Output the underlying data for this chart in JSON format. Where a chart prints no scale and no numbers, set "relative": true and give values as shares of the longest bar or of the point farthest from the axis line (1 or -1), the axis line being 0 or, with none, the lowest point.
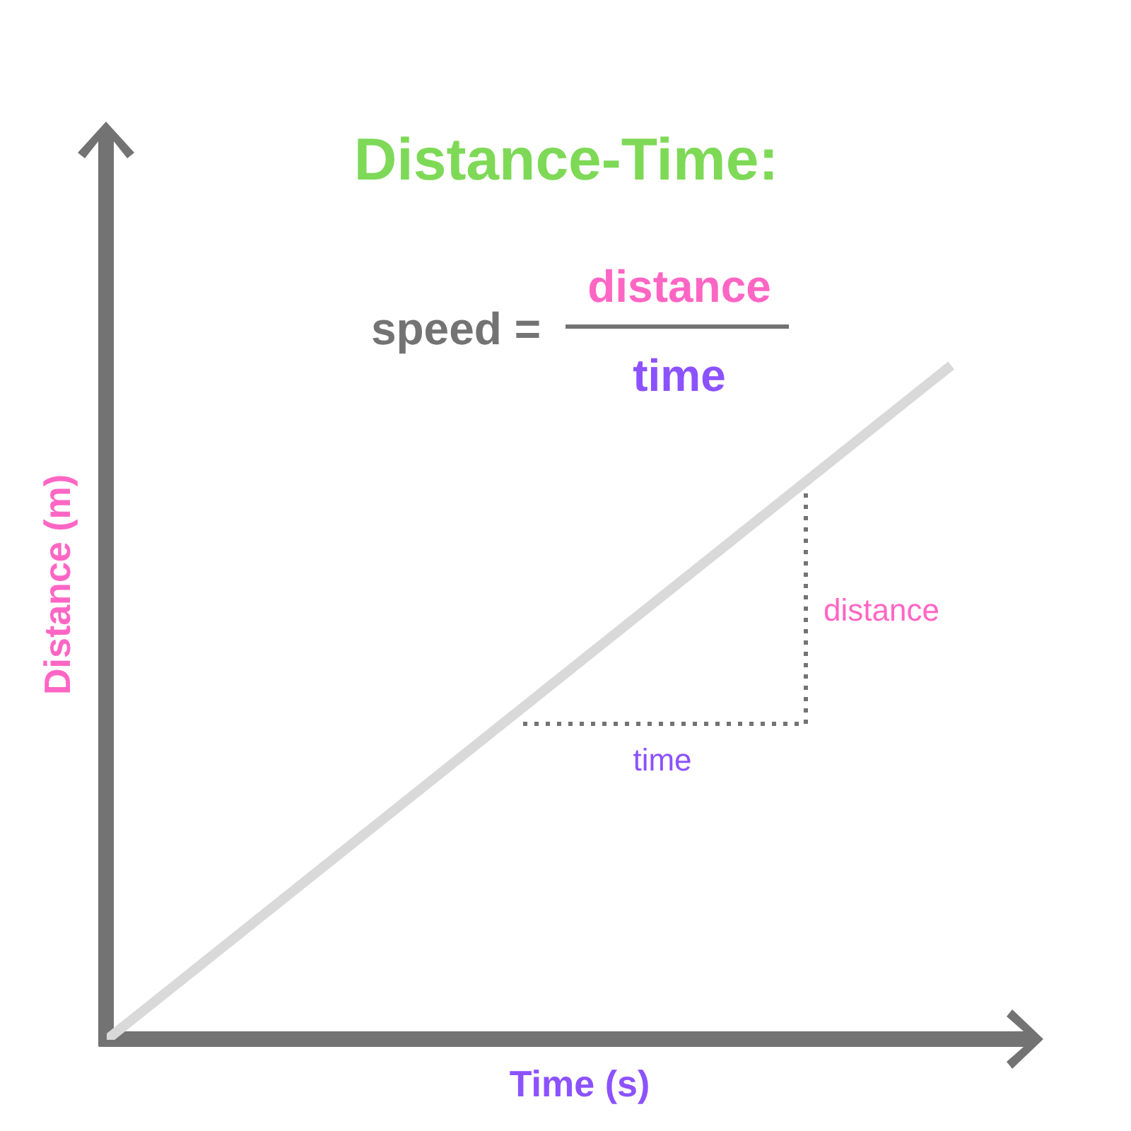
{
  "chart_data": {
    "type": "line",
    "title": "Distance-Time:",
    "xlabel": "Time (s)",
    "ylabel": "Distance (m)",
    "relative": true,
    "marker": "none",
    "line_style": "solid",
    "categories": [
      null,
      null
    ],
    "annotations": [
      "speed =",
      "distance",
      "time",
      "distance",
      "time"
    ],
    "series": [
      {
        "color": "#d9d9d9",
        "values": [
          0,
          1
        ]
      }
    ]
  }
}
